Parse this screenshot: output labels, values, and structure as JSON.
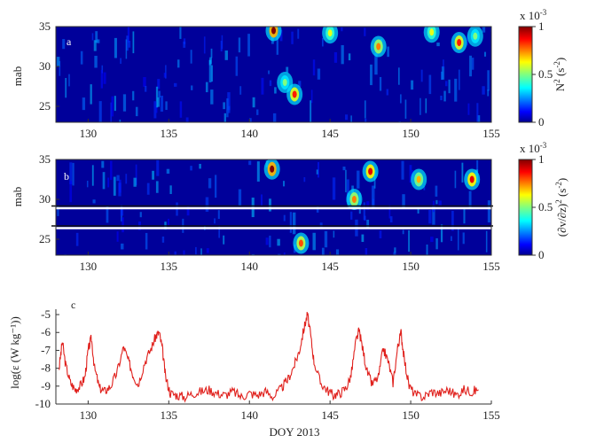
{
  "chart_data": [
    {
      "type": "heatmap",
      "panel_label": "a",
      "ylabel": "mab",
      "xlim": [
        128,
        155
      ],
      "ylim": [
        23,
        35
      ],
      "xticks": [
        130,
        135,
        140,
        145,
        150,
        155
      ],
      "xtick_labels": [
        "130",
        "135",
        "140",
        "145",
        "150",
        "155"
      ],
      "yticks": [
        25,
        30,
        35
      ],
      "ytick_labels": [
        "25",
        "30",
        "35"
      ],
      "colorbar": {
        "label": "N",
        "label_superscript": "2",
        "label_unit": " (s",
        "label_unit_superscript": "-2",
        "label_end": ")",
        "range": [
          0,
          0.001
        ],
        "ticks": [
          0,
          0.5,
          1
        ],
        "tick_labels": [
          "0",
          "0.5",
          "1"
        ],
        "multiplier": "x 10",
        "multiplier_exponent": "-3",
        "colormap": "jet"
      },
      "hotspots": [
        {
          "x": 141.5,
          "y": 34.5,
          "value": 1.0
        },
        {
          "x": 142.8,
          "y": 26.5,
          "value": 0.85
        },
        {
          "x": 142.2,
          "y": 28.0,
          "value": 0.5
        },
        {
          "x": 145.0,
          "y": 34.2,
          "value": 0.6
        },
        {
          "x": 148.0,
          "y": 32.5,
          "value": 0.75
        },
        {
          "x": 151.3,
          "y": 34.3,
          "value": 0.6
        },
        {
          "x": 153.0,
          "y": 33.0,
          "value": 0.85
        },
        {
          "x": 154.0,
          "y": 33.8,
          "value": 0.5
        }
      ]
    },
    {
      "type": "heatmap",
      "panel_label": "b",
      "ylabel": "mab",
      "xlim": [
        128,
        155
      ],
      "ylim": [
        23,
        35
      ],
      "xticks": [
        130,
        135,
        140,
        145,
        150,
        155
      ],
      "xtick_labels": [
        "130",
        "135",
        "140",
        "145",
        "150",
        "155"
      ],
      "yticks": [
        25,
        30,
        35
      ],
      "ytick_labels": [
        "25",
        "30",
        "35"
      ],
      "gap_lines_mab": [
        29.0,
        26.5
      ],
      "colorbar": {
        "label": "(∂v/∂z)",
        "label_superscript": "2",
        "label_unit": " (s",
        "label_unit_superscript": "-2",
        "label_end": ")",
        "range": [
          0,
          0.001
        ],
        "ticks": [
          0,
          0.5,
          1
        ],
        "tick_labels": [
          "0",
          "0.5",
          "1"
        ],
        "multiplier": "x 10",
        "multiplier_exponent": "-3",
        "colormap": "jet"
      },
      "hotspots": [
        {
          "x": 141.4,
          "y": 33.8,
          "value": 1.0
        },
        {
          "x": 143.2,
          "y": 24.5,
          "value": 0.8
        },
        {
          "x": 146.5,
          "y": 30.0,
          "value": 0.75
        },
        {
          "x": 147.5,
          "y": 33.5,
          "value": 0.9
        },
        {
          "x": 150.5,
          "y": 32.5,
          "value": 0.7
        },
        {
          "x": 153.8,
          "y": 32.5,
          "value": 0.9
        }
      ]
    },
    {
      "type": "line",
      "panel_label": "c",
      "xlabel": "DOY 2013",
      "ylabel": "log(ε (W kg⁻¹))",
      "xlim": [
        128,
        155
      ],
      "ylim": [
        -10,
        -4.7
      ],
      "xticks": [
        130,
        135,
        140,
        145,
        150,
        155
      ],
      "xtick_labels": [
        "130",
        "135",
        "140",
        "145",
        "150",
        "155"
      ],
      "yticks": [
        -10,
        -9,
        -8,
        -7,
        -6,
        -5
      ],
      "ytick_labels": [
        "-10",
        "-9",
        "-8",
        "-7",
        "-6",
        "-5"
      ],
      "series": [
        {
          "color": "#e0201c",
          "x": [
            128.2,
            128.4,
            128.6,
            128.9,
            129.2,
            129.5,
            129.8,
            130.0,
            130.2,
            130.4,
            130.7,
            131.0,
            131.4,
            131.8,
            132.2,
            132.5,
            132.8,
            133.1,
            133.5,
            133.9,
            134.2,
            134.4,
            134.6,
            134.8,
            135.1,
            135.5,
            136.0,
            136.5,
            137.0,
            137.5,
            138.0,
            138.5,
            139.0,
            139.5,
            140.0,
            140.5,
            141.0,
            141.5,
            142.0,
            142.4,
            142.8,
            143.1,
            143.4,
            143.6,
            143.8,
            144.0,
            144.4,
            144.8,
            145.2,
            145.6,
            146.0,
            146.3,
            146.6,
            146.8,
            147.0,
            147.3,
            147.6,
            148.0,
            148.3,
            148.6,
            148.9,
            149.2,
            149.4,
            149.6,
            149.9,
            150.3,
            150.8,
            151.3,
            151.8,
            152.3,
            152.8,
            153.3,
            153.8,
            154.2
          ],
          "y": [
            -8.0,
            -6.5,
            -7.8,
            -8.8,
            -9.2,
            -9.0,
            -8.5,
            -7.0,
            -6.3,
            -8.0,
            -9.1,
            -9.3,
            -9.0,
            -8.2,
            -6.8,
            -7.6,
            -8.4,
            -8.9,
            -7.7,
            -6.9,
            -6.2,
            -6.0,
            -6.9,
            -8.5,
            -9.4,
            -9.5,
            -9.6,
            -9.4,
            -9.3,
            -9.2,
            -9.4,
            -9.5,
            -9.3,
            -9.6,
            -9.4,
            -9.5,
            -9.3,
            -9.6,
            -9.1,
            -8.6,
            -7.8,
            -7.0,
            -5.7,
            -5.0,
            -6.2,
            -7.6,
            -8.8,
            -9.2,
            -9.5,
            -9.4,
            -9.1,
            -8.4,
            -6.5,
            -5.9,
            -6.8,
            -8.2,
            -8.9,
            -8.5,
            -6.9,
            -7.6,
            -8.8,
            -6.8,
            -6.0,
            -7.5,
            -9.0,
            -9.5,
            -9.6,
            -9.3,
            -9.4,
            -9.2,
            -9.5,
            -9.2,
            -9.3,
            -9.2
          ]
        }
      ]
    }
  ]
}
